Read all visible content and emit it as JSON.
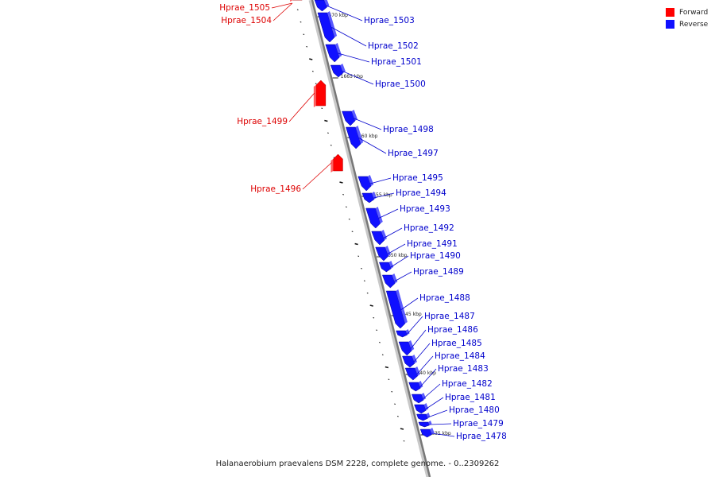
{
  "legend": {
    "forward_label": "Forward",
    "reverse_label": "Reverse",
    "forward_color": "#ff0000",
    "reverse_color": "#1010ff"
  },
  "caption": "Halanaerobium praevalens DSM 2228, complete genome. - 0..2309262",
  "ticks": [
    "1670 kbp",
    "1665 kbp",
    "1660 kbp",
    "1655 kbp",
    "1650 kbp",
    "1645 kbp",
    "1640 kbp",
    "1635 kbp"
  ],
  "genes": [
    {
      "name": "Hprae_1505",
      "strand": "forward"
    },
    {
      "name": "Hprae_1504",
      "strand": "forward"
    },
    {
      "name": "Hprae_1503",
      "strand": "reverse"
    },
    {
      "name": "Hprae_1502",
      "strand": "reverse"
    },
    {
      "name": "Hprae_1501",
      "strand": "reverse"
    },
    {
      "name": "Hprae_1500",
      "strand": "reverse"
    },
    {
      "name": "Hprae_1499",
      "strand": "forward"
    },
    {
      "name": "Hprae_1498",
      "strand": "reverse"
    },
    {
      "name": "Hprae_1497",
      "strand": "reverse"
    },
    {
      "name": "Hprae_1496",
      "strand": "forward"
    },
    {
      "name": "Hprae_1495",
      "strand": "reverse"
    },
    {
      "name": "Hprae_1494",
      "strand": "reverse"
    },
    {
      "name": "Hprae_1493",
      "strand": "reverse"
    },
    {
      "name": "Hprae_1492",
      "strand": "reverse"
    },
    {
      "name": "Hprae_1491",
      "strand": "reverse"
    },
    {
      "name": "Hprae_1490",
      "strand": "reverse"
    },
    {
      "name": "Hprae_1489",
      "strand": "reverse"
    },
    {
      "name": "Hprae_1488",
      "strand": "reverse"
    },
    {
      "name": "Hprae_1487",
      "strand": "reverse"
    },
    {
      "name": "Hprae_1486",
      "strand": "reverse"
    },
    {
      "name": "Hprae_1485",
      "strand": "reverse"
    },
    {
      "name": "Hprae_1484",
      "strand": "reverse"
    },
    {
      "name": "Hprae_1483",
      "strand": "reverse"
    },
    {
      "name": "Hprae_1482",
      "strand": "reverse"
    },
    {
      "name": "Hprae_1481",
      "strand": "reverse"
    },
    {
      "name": "Hprae_1480",
      "strand": "reverse"
    },
    {
      "name": "Hprae_1479",
      "strand": "reverse"
    },
    {
      "name": "Hprae_1478",
      "strand": "reverse"
    }
  ]
}
